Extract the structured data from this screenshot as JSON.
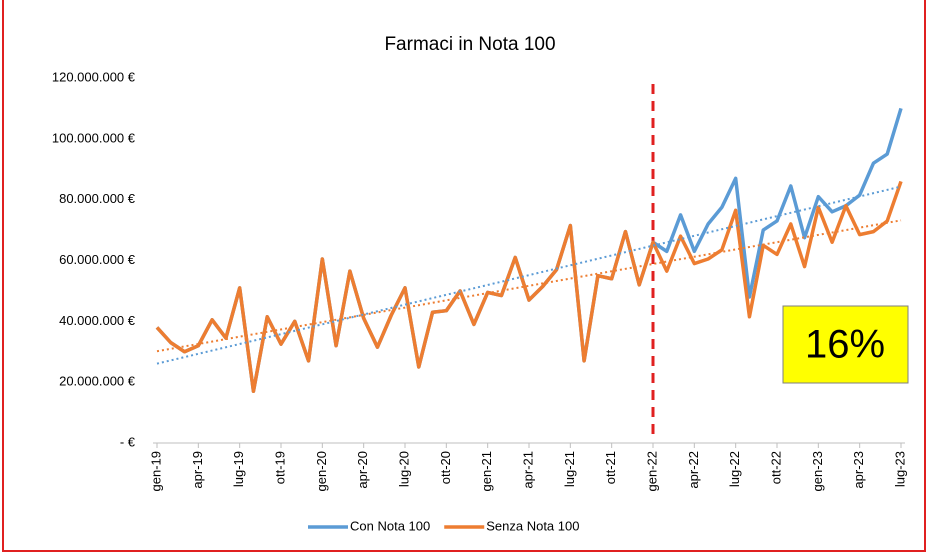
{
  "chart_data": {
    "type": "line",
    "title": "Farmaci in Nota 100",
    "categories": [
      "gen-19",
      null,
      null,
      "apr-19",
      null,
      null,
      "lug-19",
      null,
      null,
      "ott-19",
      null,
      null,
      "gen-20",
      null,
      null,
      "apr-20",
      null,
      null,
      "lug-20",
      null,
      null,
      "ott-20",
      null,
      null,
      "gen-21",
      null,
      null,
      "apr-21",
      null,
      null,
      "lug-21",
      null,
      null,
      "ott-21",
      null,
      null,
      "gen-22",
      null,
      null,
      "apr-22",
      null,
      null,
      "lug-22",
      null,
      null,
      "ott-22",
      null,
      null,
      "gen-23",
      null,
      null,
      "apr-23",
      null,
      null,
      "lug-23"
    ],
    "series": [
      {
        "name": "Con Nota 100",
        "color": "#5b9bd5",
        "values": [
          38000000,
          33000000,
          30000000,
          32000000,
          40500000,
          34500000,
          51000000,
          17000000,
          41500000,
          32500000,
          40000000,
          27000000,
          60500000,
          32000000,
          56500000,
          41000000,
          31500000,
          42000000,
          51000000,
          25000000,
          43000000,
          43500000,
          50000000,
          39000000,
          49500000,
          48500000,
          61000000,
          47000000,
          51500000,
          57000000,
          71500000,
          27000000,
          55000000,
          54000000,
          69500000,
          52000000,
          66000000,
          63000000,
          75000000,
          63000000,
          72000000,
          77500000,
          87000000,
          48000000,
          70000000,
          73000000,
          84500000,
          67500000,
          81000000,
          76000000,
          78000000,
          81500000,
          92000000,
          95000000,
          110000000
        ]
      },
      {
        "name": "Senza Nota 100",
        "color": "#ed7d31",
        "values": [
          38000000,
          33000000,
          30000000,
          32000000,
          40500000,
          34500000,
          51000000,
          17000000,
          41500000,
          32500000,
          40000000,
          27000000,
          60500000,
          32000000,
          56500000,
          41000000,
          31500000,
          42000000,
          51000000,
          25000000,
          43000000,
          43500000,
          50000000,
          39000000,
          49500000,
          48500000,
          61000000,
          47000000,
          51500000,
          57000000,
          71500000,
          27000000,
          55000000,
          54000000,
          69500000,
          52000000,
          66000000,
          56500000,
          68000000,
          59000000,
          60500000,
          63500000,
          76500000,
          41500000,
          65000000,
          62000000,
          72000000,
          58000000,
          77500000,
          66000000,
          78000000,
          68500000,
          69500000,
          73000000,
          86000000
        ]
      }
    ],
    "ylim": [
      0,
      120000000
    ],
    "yticks": [
      {
        "value": 0,
        "label": "-   €"
      },
      {
        "value": 20000000,
        "label": "20.000.000 €"
      },
      {
        "value": 40000000,
        "label": "40.000.000 €"
      },
      {
        "value": 60000000,
        "label": "60.000.000 €"
      },
      {
        "value": 80000000,
        "label": "80.000.000 €"
      },
      {
        "value": 100000000,
        "label": "100.000.000 €"
      },
      {
        "value": 120000000,
        "label": "120.000.000 €"
      }
    ],
    "trendlines": true,
    "marker_index": 36,
    "annotation": "16%",
    "legend": "bottom"
  }
}
